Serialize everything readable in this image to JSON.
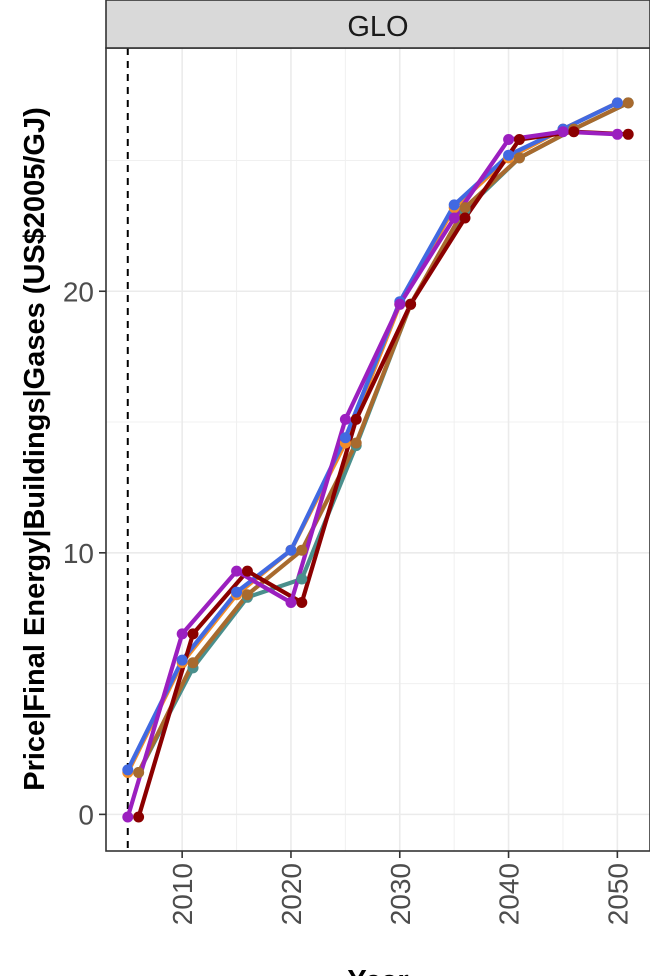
{
  "chart_data": {
    "type": "line",
    "panel": "GLO",
    "xlabel": "Year",
    "ylabel": "Price|Final Energy|Buildings|Gases (US$2005/GJ)",
    "xlim": [
      2003,
      2053
    ],
    "ylim": [
      -1.4,
      29.3
    ],
    "x_ticks": [
      2010,
      2020,
      2030,
      2040,
      2050
    ],
    "y_ticks": [
      0,
      10,
      20
    ],
    "x_tick_labels": [
      "2010",
      "2020",
      "2030",
      "2040",
      "2050"
    ],
    "y_tick_labels": [
      "0",
      "10",
      "20"
    ],
    "reference_line_x": 2005,
    "grid": true,
    "legend": "none",
    "series": [
      {
        "color": "#4a8f8c",
        "x": [
          2006,
          2011,
          2016,
          2021,
          2026,
          2031,
          2036,
          2041,
          2046,
          2051
        ],
        "y": [
          1.6,
          5.6,
          8.3,
          9.0,
          14.1,
          19.5,
          23.1,
          25.1,
          26.2,
          27.2
        ]
      },
      {
        "color": "#a86a2e",
        "x": [
          2006,
          2011,
          2016,
          2021,
          2026,
          2031,
          2036,
          2041,
          2046,
          2051
        ],
        "y": [
          1.6,
          5.8,
          8.4,
          10.1,
          14.2,
          19.5,
          23.2,
          25.1,
          26.2,
          27.2
        ]
      },
      {
        "color": "#f28c28",
        "x": [
          2005,
          2010,
          2015,
          2020,
          2025,
          2030,
          2035,
          2040,
          2045,
          2050
        ],
        "y": [
          1.6,
          5.8,
          8.4,
          10.1,
          14.2,
          19.5,
          23.2,
          25.1,
          26.2,
          27.2
        ]
      },
      {
        "color": "#4169e1",
        "x": [
          2005,
          2010,
          2015,
          2020,
          2025,
          2030,
          2035,
          2040,
          2045,
          2050
        ],
        "y": [
          1.7,
          5.9,
          8.5,
          10.1,
          14.4,
          19.6,
          23.3,
          25.2,
          26.2,
          27.2
        ]
      },
      {
        "color": "#8b0000",
        "x": [
          2006,
          2011,
          2016,
          2021,
          2026,
          2031,
          2036,
          2041,
          2046,
          2051
        ],
        "y": [
          -0.1,
          6.9,
          9.3,
          8.1,
          15.1,
          19.5,
          22.8,
          25.8,
          26.1,
          26.0
        ]
      },
      {
        "color": "#9b1fbf",
        "x": [
          2005,
          2010,
          2015,
          2020,
          2025,
          2030,
          2035,
          2040,
          2045,
          2050
        ],
        "y": [
          -0.1,
          6.9,
          9.3,
          8.1,
          15.1,
          19.5,
          22.8,
          25.8,
          26.1,
          26.0
        ]
      }
    ]
  }
}
